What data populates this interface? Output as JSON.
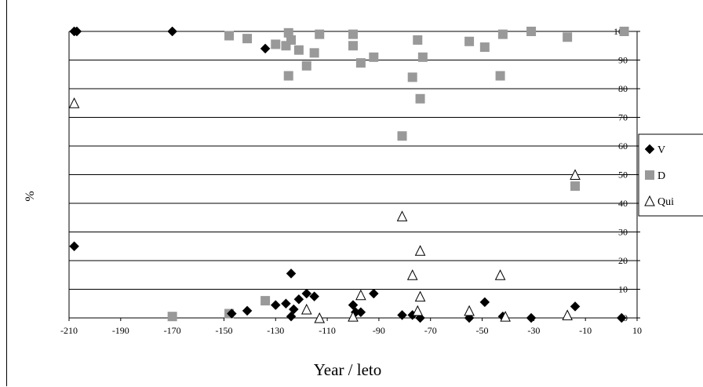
{
  "chart_data": {
    "type": "scatter",
    "title": "",
    "xlabel": "Year / leto",
    "ylabel": "%",
    "xlim": [
      -210,
      10
    ],
    "ylim": [
      0,
      100
    ],
    "x_ticks": [
      "-210",
      "-190",
      "-170",
      "-150",
      "-130",
      "-110",
      "-90",
      "-70",
      "-50",
      "-30",
      "-10",
      "10"
    ],
    "y_ticks": [
      "0",
      "10",
      "20",
      "30",
      "40",
      "50",
      "60",
      "70",
      "80",
      "90",
      "100"
    ],
    "grid": "horizontal",
    "legend_position": "right",
    "series": [
      {
        "name": "V",
        "marker": "diamond",
        "color": "#000000",
        "points": [
          [
            -208,
            100
          ],
          [
            -207,
            100
          ],
          [
            -170,
            100
          ],
          [
            -134,
            94
          ],
          [
            -208,
            25
          ],
          [
            -147,
            1.5
          ],
          [
            -141,
            2.5
          ],
          [
            -130,
            4.5
          ],
          [
            -126,
            5
          ],
          [
            -124,
            15.5
          ],
          [
            -124,
            0.5
          ],
          [
            -123,
            3
          ],
          [
            -121,
            6.5
          ],
          [
            -118,
            8.5
          ],
          [
            -115,
            7.5
          ],
          [
            -100,
            4.5
          ],
          [
            -99,
            2
          ],
          [
            -97,
            2
          ],
          [
            -92,
            8.5
          ],
          [
            -81,
            1
          ],
          [
            -77,
            1
          ],
          [
            -74,
            0
          ],
          [
            -55,
            0
          ],
          [
            -49,
            5.5
          ],
          [
            -42,
            0.5
          ],
          [
            -31,
            0
          ],
          [
            -14,
            4
          ],
          [
            4,
            0
          ]
        ]
      },
      {
        "name": "D",
        "marker": "square",
        "color": "#999999",
        "points": [
          [
            -170,
            0.5
          ],
          [
            -148,
            98.5
          ],
          [
            -148,
            1.5
          ],
          [
            -141,
            97.5
          ],
          [
            -134,
            6
          ],
          [
            -130,
            95.5
          ],
          [
            -126,
            95
          ],
          [
            -125,
            99.5
          ],
          [
            -124,
            97
          ],
          [
            -125,
            84.5
          ],
          [
            -121,
            93.5
          ],
          [
            -118,
            88
          ],
          [
            -115,
            92.5
          ],
          [
            -113,
            99
          ],
          [
            -100,
            99
          ],
          [
            -100,
            95
          ],
          [
            -97,
            89
          ],
          [
            -92,
            91
          ],
          [
            -81,
            63.5
          ],
          [
            -77,
            84
          ],
          [
            -75,
            97
          ],
          [
            -73,
            91
          ],
          [
            -74,
            76.5
          ],
          [
            -55,
            96.5
          ],
          [
            -49,
            94.5
          ],
          [
            -42,
            99
          ],
          [
            -43,
            84.5
          ],
          [
            -31,
            100
          ],
          [
            -17,
            98
          ],
          [
            -14,
            46
          ],
          [
            5,
            100
          ]
        ]
      },
      {
        "name": "Qui",
        "marker": "triangle",
        "color": "#000000",
        "points": [
          [
            -208,
            75
          ],
          [
            -118,
            3
          ],
          [
            -113,
            0
          ],
          [
            -100,
            0.5
          ],
          [
            -97,
            8
          ],
          [
            -81,
            35.5
          ],
          [
            -77,
            15
          ],
          [
            -75,
            2.5
          ],
          [
            -74,
            23.5
          ],
          [
            -74,
            7.5
          ],
          [
            -55,
            2.5
          ],
          [
            -43,
            15
          ],
          [
            -41,
            0.5
          ],
          [
            -17,
            1
          ],
          [
            -14,
            50
          ]
        ]
      }
    ]
  }
}
